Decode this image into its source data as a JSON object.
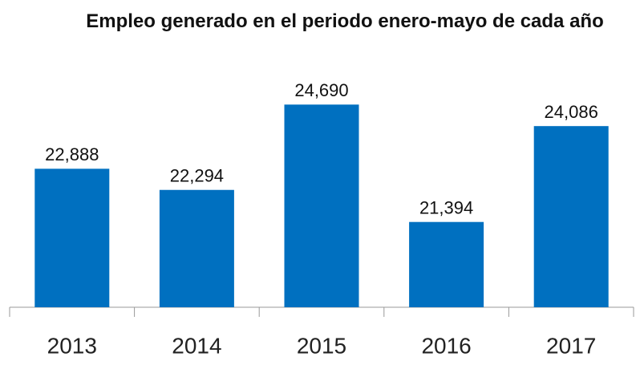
{
  "chart_data": {
    "type": "bar",
    "title": "Empleo generado en el periodo enero-mayo de cada año",
    "categories": [
      "2013",
      "2014",
      "2015",
      "2016",
      "2017"
    ],
    "values": [
      22888,
      22294,
      24690,
      21394,
      24086
    ],
    "value_labels": [
      "22,888",
      "22,294",
      "24,690",
      "21,394",
      "24,086"
    ],
    "color": "#0070c0",
    "ylim": [
      19000,
      25000
    ]
  }
}
